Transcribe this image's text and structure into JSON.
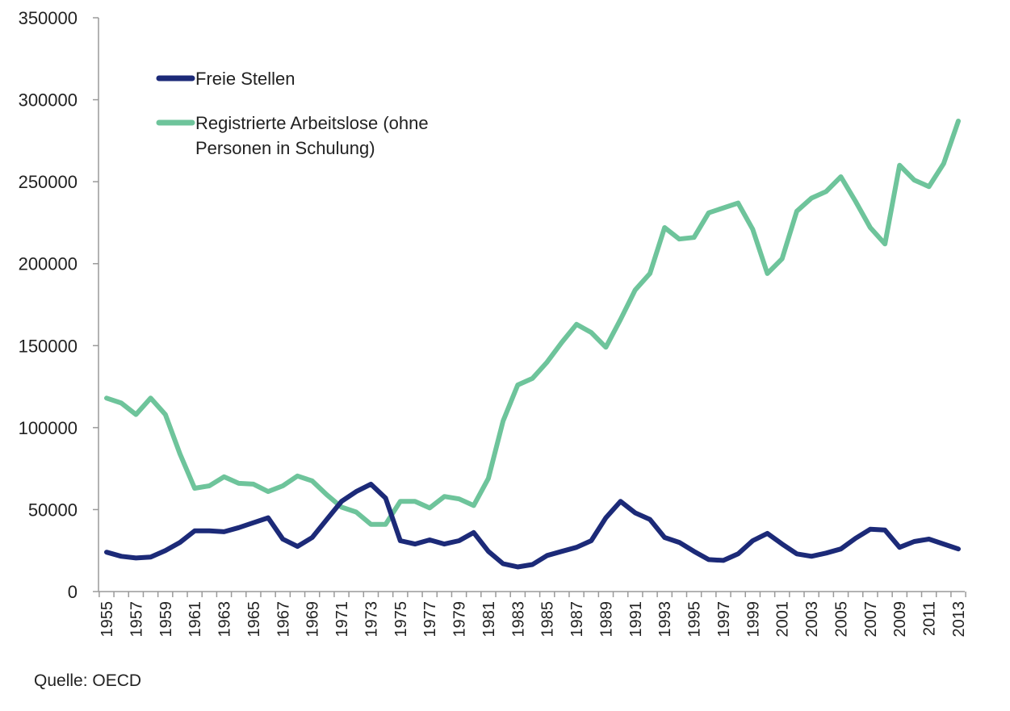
{
  "colors": {
    "freie": "#1c2a78",
    "arbeitslose": "#6ec49b",
    "axis": "#9a9a9a"
  },
  "source_text": "Quelle: OECD",
  "chart_data": {
    "type": "line",
    "title": "",
    "xlabel": "",
    "ylabel": "",
    "ylim": [
      0,
      350000
    ],
    "yticks": [
      0,
      50000,
      100000,
      150000,
      200000,
      250000,
      300000,
      350000
    ],
    "grid": false,
    "legend_position": "top-left",
    "x": [
      1955,
      1956,
      1957,
      1958,
      1959,
      1960,
      1961,
      1962,
      1963,
      1964,
      1965,
      1966,
      1967,
      1968,
      1969,
      1970,
      1971,
      1972,
      1973,
      1974,
      1975,
      1976,
      1977,
      1978,
      1979,
      1980,
      1981,
      1982,
      1983,
      1984,
      1985,
      1986,
      1987,
      1988,
      1989,
      1990,
      1991,
      1992,
      1993,
      1994,
      1995,
      1996,
      1997,
      1998,
      1999,
      2000,
      2001,
      2002,
      2003,
      2004,
      2005,
      2006,
      2007,
      2008,
      2009,
      2010,
      2011,
      2012,
      2013
    ],
    "xtick_labels": [
      "1955",
      "1957",
      "1959",
      "1961",
      "1963",
      "1965",
      "1967",
      "1969",
      "1971",
      "1973",
      "1975",
      "1977",
      "1979",
      "1981",
      "1983",
      "1985",
      "1987",
      "1989",
      "1991",
      "1993",
      "1995",
      "1997",
      "1999",
      "2001",
      "2003",
      "2005",
      "2007",
      "2009",
      "2011",
      "2013"
    ],
    "series": [
      {
        "name": "Freie Stellen",
        "color": "#1c2a78",
        "values": [
          24000,
          21500,
          20500,
          21000,
          25000,
          30000,
          37000,
          37000,
          36500,
          39000,
          42000,
          45000,
          32000,
          27500,
          33000,
          44000,
          55000,
          61000,
          65500,
          57000,
          31000,
          29000,
          31500,
          29000,
          31000,
          36000,
          24500,
          17000,
          15000,
          16500,
          22000,
          24500,
          27000,
          31000,
          45000,
          55000,
          48000,
          44000,
          33000,
          30000,
          24500,
          19500,
          19000,
          23000,
          31000,
          35500,
          29000,
          23000,
          21500,
          23500,
          26000,
          32500,
          38000,
          37500,
          27000,
          30500,
          32000,
          29000,
          26000
        ]
      },
      {
        "name": "Registrierte Arbeitslose (ohne Personen in Schulung)",
        "legend_lines": [
          "Registrierte Arbeitslose (ohne",
          "Personen in Schulung)"
        ],
        "color": "#6ec49b",
        "values": [
          118000,
          115000,
          108000,
          118000,
          108000,
          84000,
          63000,
          64500,
          70000,
          66000,
          65500,
          61000,
          64500,
          70500,
          67500,
          59000,
          51500,
          48500,
          41000,
          41000,
          55000,
          55000,
          51000,
          58000,
          56500,
          52500,
          69000,
          104000,
          126000,
          130000,
          140000,
          152000,
          163000,
          158000,
          149000,
          166000,
          184000,
          194000,
          222000,
          215000,
          216000,
          231000,
          234000,
          237000,
          221000,
          194000,
          203000,
          232000,
          240000,
          244000,
          253000,
          238000,
          222000,
          212000,
          260000,
          251000,
          247000,
          261000,
          287000
        ]
      }
    ]
  }
}
